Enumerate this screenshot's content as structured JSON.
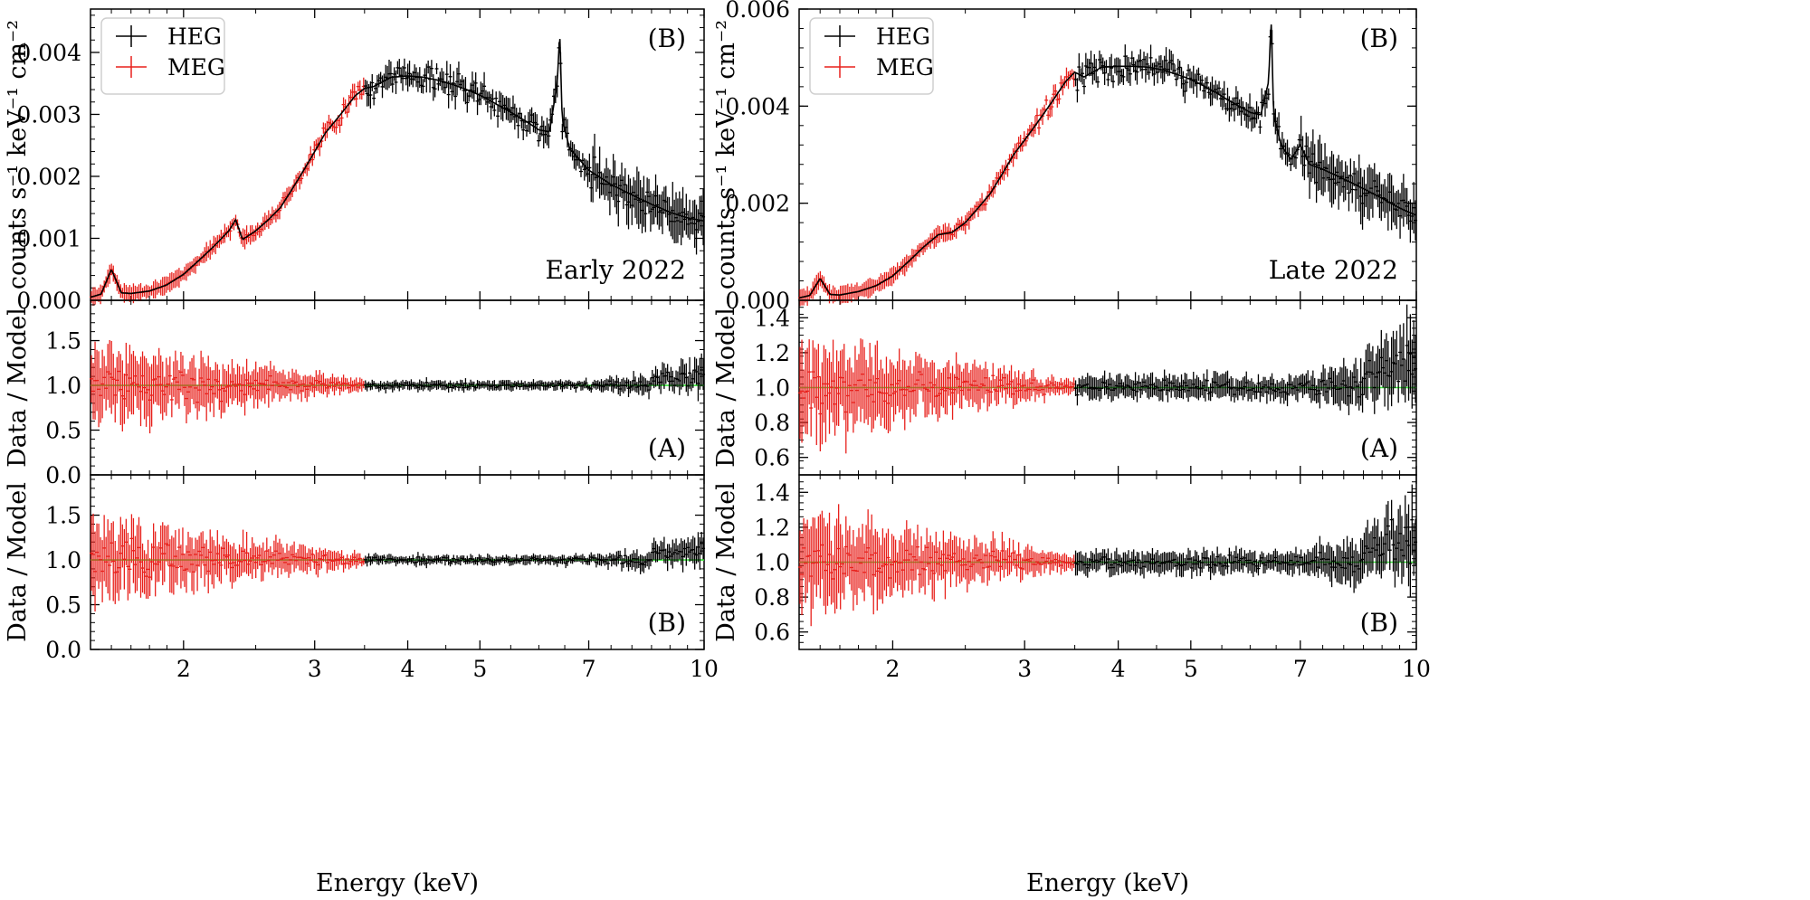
{
  "chart_data": {
    "type": "scatter",
    "xlabel": "Energy (keV)",
    "xscale": "log",
    "xlim": [
      1.5,
      10
    ],
    "xticks": [
      2,
      3,
      4,
      5,
      7,
      10
    ],
    "xtick_labels": [
      "2",
      "3",
      "4",
      "5",
      "7",
      "10"
    ],
    "legend": [
      {
        "name": "HEG",
        "color": "#000000"
      },
      {
        "name": "MEG",
        "color": "#e8211c"
      }
    ],
    "reference_line_color": "#3ef03e",
    "panels": [
      {
        "id": "left",
        "label": "Early 2022",
        "top": {
          "ylabel": "counts s⁻¹ keV⁻¹ cm⁻²",
          "ylim": [
            0,
            0.0047
          ],
          "yticks": [
            0,
            0.001,
            0.002,
            0.003,
            0.004
          ],
          "ytick_labels": [
            "0.000",
            "0.001",
            "0.002",
            "0.003",
            "0.004"
          ],
          "annotation": "(B)",
          "amp": 0.0036,
          "heg_x": [
            3.6,
            3.8,
            4.0,
            4.2,
            4.4,
            4.6,
            4.8,
            5.0,
            5.2,
            5.4,
            5.6,
            5.8,
            6.0,
            6.2,
            6.35,
            6.4,
            6.45,
            6.6,
            7.0,
            7.5,
            8.0,
            8.5,
            9.0,
            9.5,
            10.0
          ],
          "heg_y": [
            0.00345,
            0.0036,
            0.00362,
            0.0036,
            0.00355,
            0.00348,
            0.0034,
            0.00331,
            0.0032,
            0.00309,
            0.00298,
            0.00287,
            0.00275,
            0.00272,
            0.0035,
            0.0043,
            0.0029,
            0.00245,
            0.0021,
            0.00187,
            0.0017,
            0.00155,
            0.00142,
            0.00133,
            0.00128
          ],
          "meg_x": [
            1.5,
            1.55,
            1.6,
            1.65,
            1.7,
            1.8,
            1.9,
            2.0,
            2.1,
            2.2,
            2.3,
            2.35,
            2.4,
            2.5,
            2.6,
            2.7,
            2.8,
            2.9,
            3.0,
            3.1,
            3.2,
            3.3,
            3.4,
            3.5
          ],
          "meg_y": [
            5e-05,
            0.0001,
            0.0005,
            0.00012,
            0.00011,
            0.00015,
            0.00025,
            0.00042,
            0.00065,
            0.00088,
            0.00112,
            0.0013,
            0.00098,
            0.00112,
            0.0013,
            0.0015,
            0.0018,
            0.0021,
            0.0024,
            0.0027,
            0.0029,
            0.0031,
            0.0033,
            0.00342
          ]
        },
        "residuals": [
          {
            "annotation": "(A)",
            "ylabel": "Data / Model",
            "ylim": [
              0,
              1.95
            ],
            "yticks": [
              0,
              0.5,
              1.0,
              1.5
            ],
            "ytick_labels": [
              "0.0",
              "0.5",
              "1.0",
              "1.5"
            ],
            "reference": 1.0,
            "heg_spread": 0.05,
            "meg_spread": 0.4
          },
          {
            "annotation": "(B)",
            "ylabel": "Data / Model",
            "ylim": [
              0,
              1.95
            ],
            "yticks": [
              0,
              0.5,
              1.0,
              1.5
            ],
            "ytick_labels": [
              "0.0",
              "0.5",
              "1.0",
              "1.5"
            ],
            "reference": 1.0,
            "heg_spread": 0.05,
            "meg_spread": 0.4
          }
        ]
      },
      {
        "id": "right",
        "label": "Late 2022",
        "top": {
          "ylabel": "counts s⁻¹ keV⁻¹ cm⁻²",
          "ylim": [
            0,
            0.006
          ],
          "yticks": [
            0,
            0.002,
            0.004,
            0.006
          ],
          "ytick_labels": [
            "0.000",
            "0.002",
            "0.004",
            "0.006"
          ],
          "annotation": "(B)",
          "amp": 0.0048,
          "heg_x": [
            3.6,
            3.8,
            4.0,
            4.2,
            4.4,
            4.6,
            4.8,
            5.0,
            5.2,
            5.4,
            5.6,
            5.8,
            6.0,
            6.2,
            6.35,
            6.4,
            6.45,
            6.6,
            6.8,
            7.0,
            7.2,
            7.5,
            8.0,
            8.5,
            9.0,
            9.5,
            10.0
          ],
          "heg_y": [
            0.0046,
            0.0048,
            0.00482,
            0.00482,
            0.0048,
            0.00474,
            0.00465,
            0.00455,
            0.00442,
            0.00428,
            0.00413,
            0.004,
            0.00387,
            0.00382,
            0.0045,
            0.0058,
            0.0038,
            0.0032,
            0.0029,
            0.0032,
            0.0028,
            0.0027,
            0.0025,
            0.0023,
            0.0021,
            0.0019,
            0.00175
          ],
          "meg_x": [
            1.5,
            1.55,
            1.6,
            1.65,
            1.7,
            1.8,
            1.9,
            2.0,
            2.1,
            2.2,
            2.3,
            2.4,
            2.5,
            2.6,
            2.7,
            2.8,
            2.9,
            3.0,
            3.1,
            3.2,
            3.3,
            3.4,
            3.5
          ],
          "meg_y": [
            5e-05,
            0.0001,
            0.00045,
            0.00012,
            0.00011,
            0.00018,
            0.0003,
            0.0005,
            0.0008,
            0.0011,
            0.00135,
            0.0014,
            0.0016,
            0.0019,
            0.0022,
            0.0026,
            0.003,
            0.0033,
            0.0036,
            0.0039,
            0.0042,
            0.0045,
            0.0047
          ]
        },
        "residuals": [
          {
            "annotation": "(A)",
            "ylabel": "Data / Model",
            "ylim": [
              0.5,
              1.5
            ],
            "yticks": [
              0.6,
              0.8,
              1.0,
              1.2,
              1.4
            ],
            "ytick_labels": [
              "0.6",
              "0.8",
              "1.0",
              "1.2",
              "1.4"
            ],
            "reference": 1.0,
            "heg_spread": 0.06,
            "meg_spread": 0.25
          },
          {
            "annotation": "(B)",
            "ylabel": "Data / Model",
            "ylim": [
              0.5,
              1.5
            ],
            "yticks": [
              0.6,
              0.8,
              1.0,
              1.2,
              1.4
            ],
            "ytick_labels": [
              "0.6",
              "0.8",
              "1.0",
              "1.2",
              "1.4"
            ],
            "reference": 1.0,
            "heg_spread": 0.06,
            "meg_spread": 0.25
          }
        ]
      }
    ]
  }
}
